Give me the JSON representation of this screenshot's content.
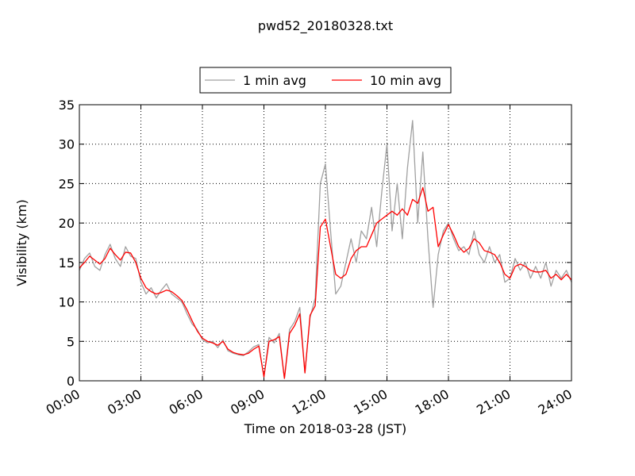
{
  "chart_data": {
    "type": "line",
    "title": "pwd52_20180328.txt",
    "xlabel": "Time on 2018-03-28 (JST)",
    "ylabel": "Visibility (km)",
    "x": [
      0,
      0.25,
      0.5,
      0.75,
      1,
      1.25,
      1.5,
      1.75,
      2,
      2.25,
      2.5,
      2.75,
      3,
      3.25,
      3.5,
      3.75,
      4,
      4.25,
      4.5,
      4.75,
      5,
      5.25,
      5.5,
      5.75,
      6,
      6.25,
      6.5,
      6.75,
      7,
      7.25,
      7.5,
      7.75,
      8,
      8.25,
      8.5,
      8.75,
      9,
      9.25,
      9.5,
      9.75,
      10,
      10.25,
      10.5,
      10.75,
      11,
      11.25,
      11.5,
      11.75,
      12,
      12.25,
      12.5,
      12.75,
      13,
      13.25,
      13.5,
      13.75,
      14,
      14.25,
      14.5,
      14.75,
      15,
      15.25,
      15.5,
      15.75,
      16,
      16.25,
      16.5,
      16.75,
      17,
      17.25,
      17.5,
      17.75,
      18,
      18.25,
      18.5,
      18.75,
      19,
      19.25,
      19.5,
      19.75,
      20,
      20.25,
      20.5,
      20.75,
      21,
      21.25,
      21.5,
      21.75,
      22,
      22.25,
      22.5,
      22.75,
      23,
      23.25,
      23.5,
      23.75,
      24
    ],
    "series": [
      {
        "name": "1 min avg",
        "color": "#a0a0a0",
        "values": [
          14,
          15.5,
          16.2,
          14.5,
          14,
          16,
          17.3,
          15.5,
          14.5,
          17,
          15.8,
          15.5,
          12.5,
          11,
          11.8,
          10.5,
          11.5,
          12.3,
          11,
          10.5,
          10,
          8.5,
          7.2,
          6.5,
          5.2,
          4.8,
          5,
          4.2,
          5.2,
          3.8,
          3.5,
          3.3,
          3.2,
          3.7,
          4.3,
          4.6,
          0.5,
          5.5,
          4.8,
          6,
          0.3,
          6.5,
          7.5,
          9.3,
          1,
          8,
          10.5,
          25,
          27.5,
          19,
          11,
          12,
          15,
          18,
          15,
          19,
          18,
          22,
          17,
          24,
          30,
          19,
          25,
          18,
          27,
          33,
          20,
          29,
          18,
          9.3,
          16,
          19,
          20,
          18,
          16.5,
          17,
          16,
          19,
          16,
          15,
          17,
          15,
          16,
          12.5,
          13,
          15.5,
          14,
          15,
          13,
          14.5,
          13,
          15,
          12,
          14,
          13,
          14,
          12.5
        ]
      },
      {
        "name": "10 min avg",
        "color": "#ff0000",
        "values": [
          14.3,
          15,
          15.8,
          15.3,
          14.8,
          15.5,
          16.8,
          16,
          15.3,
          16.3,
          16.2,
          15,
          13,
          11.8,
          11.3,
          11,
          11.2,
          11.5,
          11.3,
          10.8,
          10.2,
          9,
          7.6,
          6.3,
          5.4,
          5,
          4.8,
          4.5,
          5,
          4,
          3.6,
          3.4,
          3.3,
          3.5,
          4,
          4.4,
          0.5,
          5,
          5.2,
          5.6,
          0.3,
          6,
          7,
          8.5,
          1,
          8.3,
          9.5,
          19.5,
          20.5,
          17,
          13.5,
          13,
          13.5,
          15.5,
          16.5,
          17,
          17,
          18.5,
          20,
          20.5,
          21,
          21.5,
          21,
          21.8,
          21,
          23,
          22.5,
          24.5,
          21.5,
          22,
          17,
          18.5,
          19.8,
          18.5,
          17,
          16.3,
          16.8,
          18,
          17.5,
          16.5,
          16.3,
          16,
          15,
          13.5,
          13,
          14.5,
          14.8,
          14.5,
          14,
          13.8,
          13.8,
          14,
          13,
          13.5,
          12.8,
          13.5,
          12.8
        ]
      }
    ],
    "xlim": [
      0,
      24
    ],
    "xticks": [
      {
        "value": 0,
        "label": "00:00"
      },
      {
        "value": 3,
        "label": "03:00"
      },
      {
        "value": 6,
        "label": "06:00"
      },
      {
        "value": 9,
        "label": "09:00"
      },
      {
        "value": 12,
        "label": "12:00"
      },
      {
        "value": 15,
        "label": "15:00"
      },
      {
        "value": 18,
        "label": "18:00"
      },
      {
        "value": 21,
        "label": "21:00"
      },
      {
        "value": 24,
        "label": "24:00"
      }
    ],
    "ylim": [
      0,
      35
    ],
    "yticks": [
      0,
      5,
      10,
      15,
      20,
      25,
      30,
      35
    ],
    "grid": true,
    "legend": "top"
  }
}
